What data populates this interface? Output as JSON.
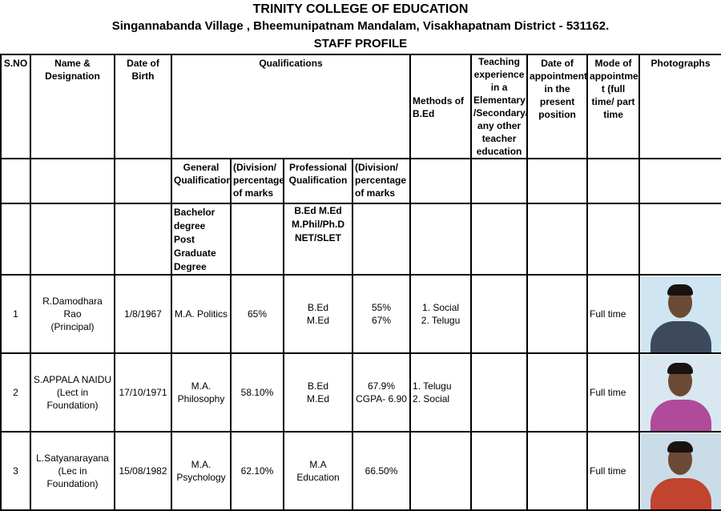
{
  "header": {
    "college": "TRINITY  COLLEGE  OF  EDUCATION",
    "address": "Singannabanda Village , Bheemunipatnam Mandalam, Visakhapatnam District - 531162.",
    "subtitle": "STAFF  PROFILE"
  },
  "columns": {
    "sno": "S.NO",
    "name": "Name & Designation",
    "dob": "Date of Birth",
    "qualifications": "Qualifications",
    "methods": "Methods of B.Ed",
    "experience": "Teaching experience in a Elementary /Secondary/ any other teacher education",
    "date_appointment": "Date of appointment in the present position",
    "mode": "Mode of appointmen t (full time/ part time",
    "photos": "Photographs"
  },
  "subcolumns": {
    "general": "General Qualification",
    "general_pct": "(Division/ percentage of marks",
    "professional": "Professional Qualification",
    "professional_pct": "(Division/ percentage of marks"
  },
  "levels": {
    "general": "Bachelor degree Post Graduate Degree",
    "professional": "B.Ed M.Ed M.Phil/Ph.D NET/SLET"
  },
  "rows": [
    {
      "sno": "1",
      "name": "R.Damodhara Rao",
      "designation": "(Principal)",
      "dob": "1/8/1967",
      "general": "M.A.  Politics",
      "general_pct": "65%",
      "professional": "B.Ed",
      "professional2": "M.Ed",
      "pct1": "55%",
      "pct2": "67%",
      "method1": "1. Social",
      "method2": "2. Telugu",
      "mode": "Full time",
      "photo_bg": "#cfe6f2",
      "shirt": "#3d4a5e"
    },
    {
      "sno": "2",
      "name": "S.APPALA NAIDU",
      "designation": "(Lect in Foundation)",
      "dob": "17/10/1971",
      "general": "M.A. Philosophy",
      "general_pct": "58.10%",
      "professional": "B.Ed",
      "professional2": "M.Ed",
      "pct1": "67.9%",
      "pct2": "CGPA- 6.90",
      "method1": "1. Telugu",
      "method2": "2. Social",
      "mode": "Full time",
      "photo_bg": "#d9e8f0",
      "shirt": "#b04a9a"
    },
    {
      "sno": "3",
      "name": "L.Satyanarayana",
      "designation": "(Lec in Foundation)",
      "dob": "15/08/1982",
      "general": "M.A. Psychology",
      "general_pct": "62.10%",
      "professional": "M.A",
      "professional2": "Education",
      "pct1": "66.50%",
      "pct2": "",
      "method1": "",
      "method2": "",
      "mode": "Full time",
      "photo_bg": "#c9dce8",
      "shirt": "#c0442e"
    }
  ]
}
